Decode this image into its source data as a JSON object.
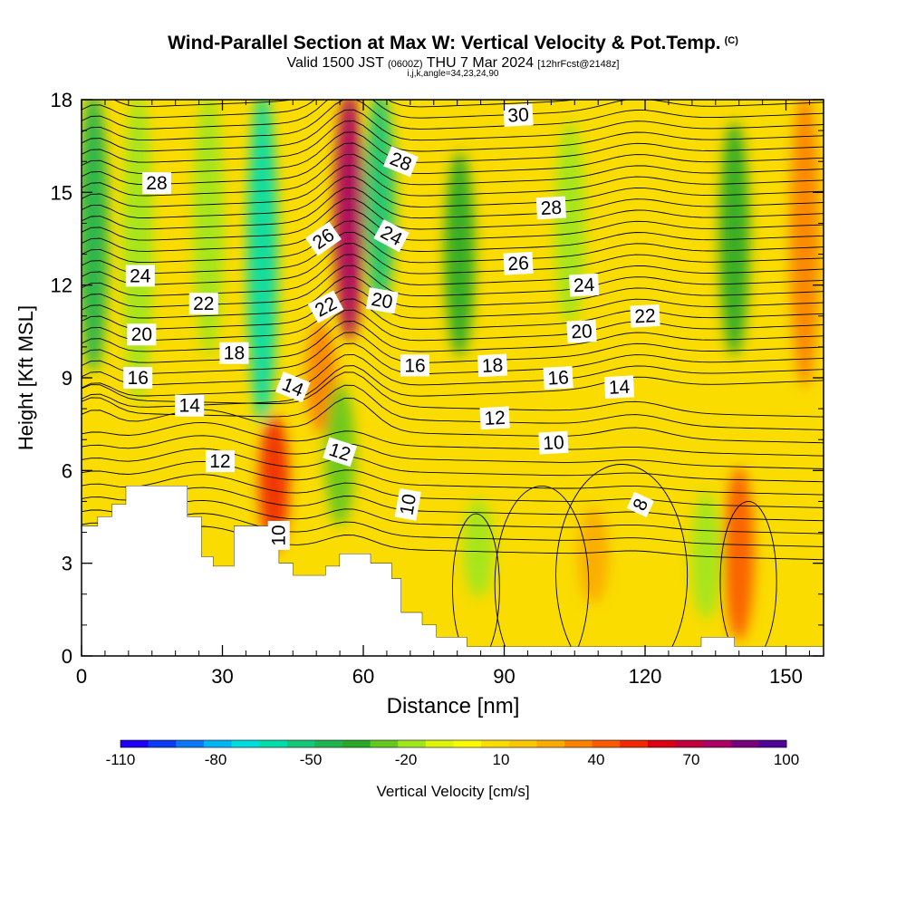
{
  "chart_data": {
    "type": "contour",
    "title": "Wind-Parallel Section at Max W: Vertical Velocity & Pot.Temp.",
    "title_suffix": "(C)",
    "subtitle": {
      "valid": "Valid 1500 JST",
      "utc": "(0600Z)",
      "date": "THU 7 Mar 2024",
      "forecast": "[12hrFcst@2148z]"
    },
    "subtitle2": "i,j,k,angle=34,23,24,90",
    "xlabel": "Distance [nm]",
    "ylabel": "Height [Kft MSL]",
    "xlim": [
      0,
      158
    ],
    "ylim": [
      0,
      18
    ],
    "x_ticks": [
      "0",
      "30",
      "60",
      "90",
      "120",
      "150"
    ],
    "y_ticks": [
      "0",
      "3",
      "6",
      "9",
      "12",
      "15",
      "18"
    ],
    "colorbar": {
      "label": "Vertical Velocity [cm/s]",
      "ticks": [
        "-110",
        "-80",
        "-50",
        "-20",
        "10",
        "40",
        "70",
        "100"
      ],
      "min": -110,
      "max": 100,
      "colors": [
        "#1e00f5",
        "#0a3cf5",
        "#0a78f5",
        "#00b4f5",
        "#00dcdc",
        "#00dcaa",
        "#14c878",
        "#1eb450",
        "#28aa28",
        "#64c81e",
        "#a0e61e",
        "#dcf50a",
        "#fafa00",
        "#fadc00",
        "#fac800",
        "#faaa00",
        "#fa8200",
        "#fa5a00",
        "#f02800",
        "#dc0014",
        "#be003c",
        "#aa0064",
        "#78007d",
        "#500096"
      ]
    },
    "vertical_velocity_columns": [
      {
        "x": 2.5,
        "w": -45,
        "top": 18,
        "bottom": 9.5
      },
      {
        "x": 12,
        "w": -20,
        "top": 18,
        "bottom": 8.5
      },
      {
        "x": 27,
        "w": -22,
        "top": 18,
        "bottom": 10
      },
      {
        "x": 38.5,
        "w": -58,
        "top": 18,
        "bottom": 7.8
      },
      {
        "x": 41,
        "w": 50,
        "top": 7.5,
        "bottom": 3.7
      },
      {
        "x": 57,
        "w": 75,
        "top": 18,
        "bottom": 10.5
      },
      {
        "x": 51,
        "w": 35,
        "top": 10.5,
        "bottom": 7.5
      },
      {
        "x": 63.5,
        "w": -55,
        "top": 18,
        "bottom": 11.5
      },
      {
        "x": 55,
        "w": -25,
        "top": 8.5,
        "bottom": 4.5
      },
      {
        "x": 80.5,
        "w": -35,
        "top": 16,
        "bottom": 10
      },
      {
        "x": 104,
        "w": -18,
        "top": 17,
        "bottom": 11
      },
      {
        "x": 84.5,
        "w": -22,
        "top": 4.8,
        "bottom": 2.2
      },
      {
        "x": 109,
        "w": 22,
        "top": 4.5,
        "bottom": 2
      },
      {
        "x": 139,
        "w": -40,
        "top": 17,
        "bottom": 10
      },
      {
        "x": 140,
        "w": 45,
        "top": 5.8,
        "bottom": 0.8
      },
      {
        "x": 133,
        "w": -22,
        "top": 5,
        "bottom": 1.5
      },
      {
        "x": 154,
        "w": 30,
        "top": 18,
        "bottom": 9
      }
    ],
    "potential_temperature_labels": [
      {
        "value": "30",
        "x": 93,
        "y": 17.5
      },
      {
        "value": "28",
        "x": 16,
        "y": 15.3
      },
      {
        "value": "28",
        "x": 68,
        "y": 16
      },
      {
        "value": "28",
        "x": 100,
        "y": 14.5
      },
      {
        "value": "26",
        "x": 51.5,
        "y": 13.5
      },
      {
        "value": "24",
        "x": 66,
        "y": 13.6
      },
      {
        "value": "26",
        "x": 93,
        "y": 12.7
      },
      {
        "value": "24",
        "x": 12.5,
        "y": 12.3
      },
      {
        "value": "24",
        "x": 107,
        "y": 12
      },
      {
        "value": "22",
        "x": 26,
        "y": 11.4
      },
      {
        "value": "22",
        "x": 52,
        "y": 11.3
      },
      {
        "value": "20",
        "x": 64,
        "y": 11.5
      },
      {
        "value": "22",
        "x": 120,
        "y": 11
      },
      {
        "value": "20",
        "x": 12.8,
        "y": 10.4
      },
      {
        "value": "20",
        "x": 106.5,
        "y": 10.5
      },
      {
        "value": "18",
        "x": 32.5,
        "y": 9.8
      },
      {
        "value": "16",
        "x": 71,
        "y": 9.4
      },
      {
        "value": "18",
        "x": 87.5,
        "y": 9.4
      },
      {
        "value": "16",
        "x": 12,
        "y": 9
      },
      {
        "value": "16",
        "x": 101.5,
        "y": 9
      },
      {
        "value": "14",
        "x": 45,
        "y": 8.7
      },
      {
        "value": "14",
        "x": 114.5,
        "y": 8.7
      },
      {
        "value": "14",
        "x": 23,
        "y": 8.1
      },
      {
        "value": "12",
        "x": 88,
        "y": 7.7
      },
      {
        "value": "10",
        "x": 100.5,
        "y": 6.9
      },
      {
        "value": "12",
        "x": 55,
        "y": 6.6
      },
      {
        "value": "12",
        "x": 29.5,
        "y": 6.3
      },
      {
        "value": "10",
        "x": 69.5,
        "y": 4.9
      },
      {
        "value": "8",
        "x": 119,
        "y": 4.9
      },
      {
        "value": "10",
        "x": 42,
        "y": 3.9
      }
    ],
    "terrain": [
      [
        0,
        4.2
      ],
      [
        3.5,
        4.2
      ],
      [
        3.5,
        4.5
      ],
      [
        6.5,
        4.5
      ],
      [
        6.5,
        4.9
      ],
      [
        9.5,
        4.9
      ],
      [
        9.5,
        5.5
      ],
      [
        22.5,
        5.5
      ],
      [
        22.5,
        4.5
      ],
      [
        25.5,
        4.5
      ],
      [
        25.5,
        3.2
      ],
      [
        28,
        3.2
      ],
      [
        28,
        2.9
      ],
      [
        32.5,
        2.9
      ],
      [
        32.5,
        4.2
      ],
      [
        42,
        4.2
      ],
      [
        42,
        3.0
      ],
      [
        45,
        3.0
      ],
      [
        45,
        2.6
      ],
      [
        52,
        2.6
      ],
      [
        52,
        2.9
      ],
      [
        55,
        2.9
      ],
      [
        55,
        3.3
      ],
      [
        61.5,
        3.3
      ],
      [
        61.5,
        3.0
      ],
      [
        66,
        3.0
      ],
      [
        66,
        2.5
      ],
      [
        68,
        2.5
      ],
      [
        68,
        1.4
      ],
      [
        72.5,
        1.4
      ],
      [
        72.5,
        1.0
      ],
      [
        75.5,
        1.0
      ],
      [
        75.5,
        0.6
      ],
      [
        82,
        0.6
      ],
      [
        82,
        0.3
      ],
      [
        132,
        0.3
      ],
      [
        132,
        0.6
      ],
      [
        139,
        0.6
      ],
      [
        139,
        0.3
      ],
      [
        158,
        0.3
      ]
    ]
  }
}
